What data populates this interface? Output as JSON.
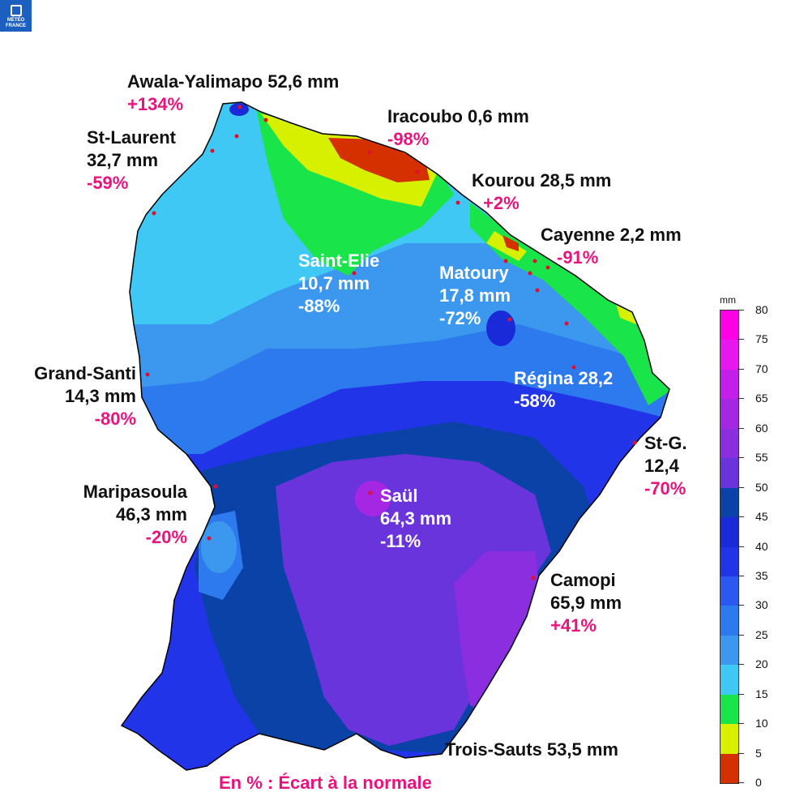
{
  "logo_text": "MÉTÉO FRANCE",
  "legend": {
    "unit": "mm",
    "ticks": [
      "80",
      "75",
      "70",
      "65",
      "60",
      "55",
      "50",
      "45",
      "40",
      "35",
      "30",
      "25",
      "20",
      "15",
      "10",
      "5",
      "0"
    ],
    "colors": [
      "#ff00e6",
      "#e617ef",
      "#c41fea",
      "#a526e3",
      "#8b2ee0",
      "#6a34dc",
      "#0b42a8",
      "#1a2ad8",
      "#2234e8",
      "#2a58f0",
      "#2d7aef",
      "#3b98ee",
      "#40c8f5",
      "#19e54a",
      "#d6f000",
      "#d43000"
    ]
  },
  "labels": {
    "awala": {
      "name": "Awala-Yalimapo 52,6 mm",
      "pct": "+134%"
    },
    "iracoubo": {
      "name": "Iracoubo 0,6 mm",
      "pct": "-98%"
    },
    "stlaurent": {
      "name1": "St-Laurent",
      "name2": "32,7 mm",
      "pct": "-59%"
    },
    "kourou": {
      "name": "Kourou 28,5 mm",
      "pct": "+2%"
    },
    "cayenne": {
      "name": "Cayenne 2,2 mm",
      "pct": "-91%"
    },
    "saintelie": {
      "name1": "Saint-Elie",
      "name2": "10,7 mm",
      "pct": "-88%"
    },
    "matoury": {
      "name1": "Matoury",
      "name2": "17,8 mm",
      "pct": "-72%"
    },
    "grandsanti": {
      "name1": "Grand-Santi",
      "name2": "14,3 mm",
      "pct": "-80%"
    },
    "regina": {
      "name": "Régina 28,2",
      "pct": "-58%"
    },
    "stg": {
      "name1": "St-G.",
      "name2": "12,4",
      "pct": "-70%"
    },
    "maripasoula": {
      "name1": "Maripasoula",
      "name2": "46,3 mm",
      "pct": "-20%"
    },
    "saul": {
      "name1": "Saül",
      "name2": "64,3 mm",
      "pct": "-11%"
    },
    "camopi": {
      "name1": "Camopi",
      "name2": "65,9 mm",
      "pct": "+41%"
    },
    "troissauts": {
      "name": "Trois-Sauts 53,5 mm"
    }
  },
  "note": "En % : Écart à la normale"
}
